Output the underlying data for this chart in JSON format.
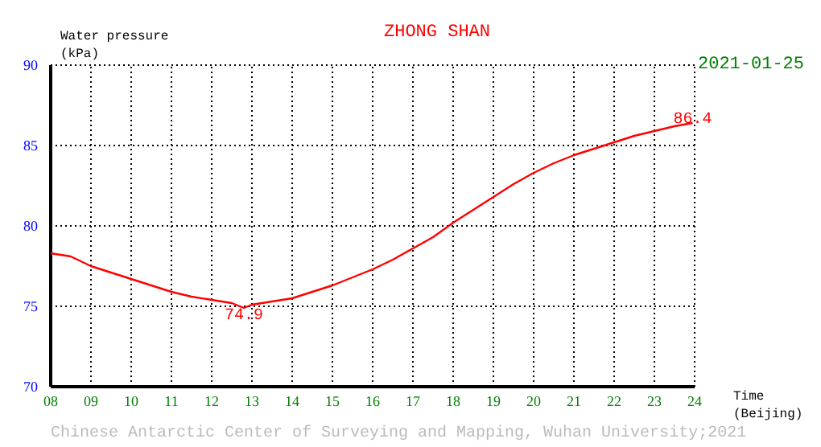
{
  "chart_data": {
    "type": "line",
    "title": "ZHONG SHAN",
    "subtitle": "2021-01-25",
    "ylabel": "Water pressure\n(kPa)",
    "xlabel": "Time\n(Beijing)",
    "x": [
      8,
      8.5,
      9,
      9.5,
      10,
      10.5,
      11,
      11.5,
      12,
      12.5,
      12.8,
      13,
      13.5,
      14,
      14.5,
      15,
      15.5,
      16,
      16.5,
      17,
      17.5,
      18,
      18.5,
      19,
      19.5,
      20,
      20.5,
      21,
      21.5,
      22,
      22.5,
      23,
      23.5,
      23.95
    ],
    "series": [
      {
        "color": "#ff0000",
        "values": [
          78.3,
          78.1,
          77.5,
          77.1,
          76.7,
          76.3,
          75.9,
          75.6,
          75.4,
          75.2,
          74.9,
          75.1,
          75.3,
          75.5,
          75.9,
          76.3,
          76.8,
          77.3,
          77.9,
          78.6,
          79.3,
          80.2,
          81.0,
          81.8,
          82.6,
          83.3,
          83.9,
          84.4,
          84.8,
          85.2,
          85.6,
          85.9,
          86.2,
          86.4
        ]
      }
    ],
    "xlim": [
      8,
      24
    ],
    "ylim": [
      70,
      90
    ],
    "xticks": [
      {
        "value": 8,
        "label": "08"
      },
      {
        "value": 9,
        "label": "09"
      },
      10,
      11,
      12,
      13,
      14,
      15,
      16,
      17,
      18,
      19,
      20,
      21,
      22,
      23,
      24
    ],
    "yticks": [
      70,
      75,
      80,
      85,
      90
    ],
    "grid": true,
    "marker": "none",
    "line_style": "solid",
    "annotations": [
      {
        "text": "74.9",
        "x": 12.8,
        "y": 74.9
      },
      {
        "text": "86.4",
        "x": 23.95,
        "y": 86.4
      },
      "Chinese Antarctic Center of Surveying and Mapping, Wuhan University;2021"
    ]
  }
}
